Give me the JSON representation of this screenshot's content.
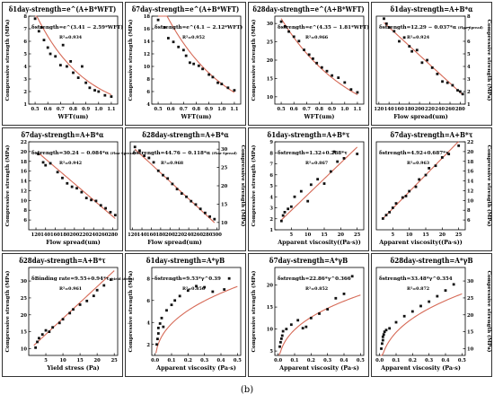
{
  "figure": {
    "caption": "(b)"
  },
  "colors": {
    "fit": "#d66a57",
    "point": "#111111",
    "axis": "#000000"
  },
  "chart_data": [
    {
      "type": "scatter",
      "title": "δ1day-strength=e^(A+B*WFT)",
      "equation": "δstrength=e^(3.41 − 2.59*WFT)",
      "r2": "R²=0.934",
      "xlabel": "WFT(um)",
      "ylabel": "Compressive strength (MPa)",
      "ylabel_side": "left",
      "xlim": [
        0.45,
        1.15
      ],
      "ylim": [
        1,
        8
      ],
      "xticks": [
        0.5,
        0.6,
        0.7,
        0.8,
        0.9,
        1.0,
        1.1
      ],
      "yticks": [
        1,
        2,
        3,
        4,
        5,
        6,
        7,
        8
      ],
      "fit": {
        "model": "exp",
        "a": 3.41,
        "b": -2.59,
        "x0": 0.5,
        "x1": 1.1
      },
      "points": [
        [
          0.5,
          7.8
        ],
        [
          0.53,
          6.8
        ],
        [
          0.55,
          7.1
        ],
        [
          0.57,
          6.1
        ],
        [
          0.6,
          5.5
        ],
        [
          0.62,
          5.0
        ],
        [
          0.66,
          4.8
        ],
        [
          0.7,
          4.1
        ],
        [
          0.72,
          5.7
        ],
        [
          0.75,
          4.0
        ],
        [
          0.78,
          4.4
        ],
        [
          0.8,
          3.5
        ],
        [
          0.84,
          3.1
        ],
        [
          0.87,
          4.0
        ],
        [
          0.9,
          2.7
        ],
        [
          0.93,
          2.3
        ],
        [
          0.97,
          2.1
        ],
        [
          1.0,
          2.0
        ],
        [
          1.05,
          1.7
        ],
        [
          1.1,
          1.6
        ]
      ]
    },
    {
      "type": "scatter",
      "title": "δ7day-strength=e^(A+B*WFT)",
      "equation": "δstrength=e^(4.1 − 2.12*WFT)",
      "r2": "R²=0.952",
      "xlabel": "WFT(um)",
      "ylabel": "Compressive strength (MPa)",
      "ylabel_side": "left",
      "xlim": [
        0.45,
        1.15
      ],
      "ylim": [
        4,
        18
      ],
      "xticks": [
        0.5,
        0.6,
        0.7,
        0.8,
        0.9,
        1.0,
        1.1
      ],
      "yticks": [
        4,
        6,
        8,
        10,
        12,
        14,
        16,
        18
      ],
      "fit": {
        "model": "exp",
        "a": 4.1,
        "b": -2.12,
        "x0": 0.5,
        "x1": 1.1
      },
      "points": [
        [
          0.5,
          17.4
        ],
        [
          0.55,
          16.2
        ],
        [
          0.58,
          14.5
        ],
        [
          0.62,
          13.9
        ],
        [
          0.66,
          13.1
        ],
        [
          0.7,
          12.6
        ],
        [
          0.72,
          11.7
        ],
        [
          0.75,
          10.6
        ],
        [
          0.78,
          10.4
        ],
        [
          0.82,
          10.1
        ],
        [
          0.85,
          9.6
        ],
        [
          0.9,
          8.7
        ],
        [
          0.93,
          8.3
        ],
        [
          0.97,
          7.4
        ],
        [
          1.0,
          7.2
        ],
        [
          1.05,
          6.6
        ],
        [
          1.1,
          6.2
        ]
      ]
    },
    {
      "type": "scatter",
      "title": "δ28day-strength=e^(A+B*WFT)",
      "equation": "δstrength=e^(4.35 − 1.81*WFT)",
      "r2": "R²=0.966",
      "xlabel": "WFT(um)",
      "ylabel": "Compressive strength (MPa)",
      "ylabel_side": "left",
      "xlim": [
        0.45,
        1.15
      ],
      "ylim": [
        8,
        32
      ],
      "xticks": [
        0.5,
        0.6,
        0.7,
        0.8,
        0.9,
        1.0,
        1.1
      ],
      "yticks": [
        10,
        15,
        20,
        25,
        30
      ],
      "fit": {
        "model": "exp",
        "a": 4.35,
        "b": -1.81,
        "x0": 0.5,
        "x1": 1.1
      },
      "points": [
        [
          0.5,
          30.5
        ],
        [
          0.53,
          29.2
        ],
        [
          0.56,
          27.8
        ],
        [
          0.6,
          26.4
        ],
        [
          0.64,
          25.2
        ],
        [
          0.68,
          22.8
        ],
        [
          0.72,
          21.5
        ],
        [
          0.75,
          20.4
        ],
        [
          0.78,
          19.2
        ],
        [
          0.82,
          18.0
        ],
        [
          0.86,
          17.0
        ],
        [
          0.9,
          15.8
        ],
        [
          0.95,
          15.2
        ],
        [
          1.0,
          13.9
        ],
        [
          1.05,
          12.0
        ],
        [
          1.1,
          11.2
        ]
      ]
    },
    {
      "type": "scatter",
      "title": "δ1day-strength=A+B*α",
      "equation": "δstrength=12.29 − 0.037*α",
      "equation_sub": "(Flow Spread)",
      "r2": "R²=0.924",
      "xlabel": "Flow spread(um)",
      "ylabel": "Compressive strength (MPa)",
      "ylabel_side": "right",
      "xlim": [
        115,
        290
      ],
      "ylim": [
        1,
        8
      ],
      "xticks": [
        120,
        140,
        160,
        180,
        200,
        220,
        240,
        260,
        280
      ],
      "yticks": [
        1,
        2,
        3,
        4,
        5,
        6,
        7,
        8
      ],
      "fit": {
        "model": "linear",
        "a": 12.29,
        "b": -0.037,
        "x0": 130,
        "x1": 285
      },
      "points": [
        [
          130,
          7.8
        ],
        [
          135,
          7.4
        ],
        [
          140,
          7.1
        ],
        [
          150,
          6.8
        ],
        [
          160,
          6.0
        ],
        [
          170,
          6.3
        ],
        [
          180,
          5.6
        ],
        [
          185,
          5.2
        ],
        [
          195,
          5.3
        ],
        [
          205,
          4.3
        ],
        [
          215,
          4.5
        ],
        [
          225,
          3.9
        ],
        [
          235,
          3.4
        ],
        [
          245,
          2.8
        ],
        [
          255,
          2.7
        ],
        [
          265,
          2.5
        ],
        [
          275,
          2.1
        ],
        [
          280,
          2.0
        ],
        [
          285,
          1.8
        ]
      ]
    },
    {
      "type": "scatter",
      "title": "δ7day-strength=A+B*α",
      "equation": "δstrength=30.24 − 0.084*α",
      "equation_sub": "(Flow Spread)",
      "r2": "R²=0.942",
      "xlabel": "Flow spread(um)",
      "ylabel": "Compressive strength (MPa)",
      "ylabel_side": "left",
      "xlim": [
        105,
        290
      ],
      "ylim": [
        4,
        22
      ],
      "xticks": [
        120,
        140,
        160,
        180,
        200,
        220,
        240,
        260,
        280
      ],
      "yticks": [
        6,
        8,
        10,
        12,
        14,
        16,
        18,
        20,
        22
      ],
      "fit": {
        "model": "linear",
        "a": 30.24,
        "b": -0.084,
        "x0": 125,
        "x1": 285
      },
      "points": [
        [
          125,
          19.5
        ],
        [
          135,
          17.8
        ],
        [
          140,
          17.2
        ],
        [
          150,
          17.6
        ],
        [
          165,
          15.8
        ],
        [
          175,
          14.6
        ],
        [
          185,
          13.5
        ],
        [
          195,
          12.8
        ],
        [
          205,
          12.5
        ],
        [
          215,
          11.7
        ],
        [
          225,
          10.5
        ],
        [
          235,
          10.1
        ],
        [
          245,
          9.9
        ],
        [
          255,
          9.0
        ],
        [
          265,
          8.4
        ],
        [
          275,
          7.6
        ],
        [
          285,
          7.0
        ]
      ]
    },
    {
      "type": "scatter",
      "title": "δ28day-strength=A+B*α",
      "equation": "δstrength=44.76 − 0.118*α",
      "equation_sub": "(Flow Spread)",
      "r2": "R²=0.968",
      "xlabel": "Flow spread(um)",
      "ylabel": "Compressive strength (MPa)",
      "ylabel_side": "right",
      "xlim": [
        115,
        305
      ],
      "ylim": [
        8,
        32
      ],
      "xticks": [
        120,
        140,
        160,
        180,
        200,
        220,
        240,
        260,
        280,
        300
      ],
      "yticks": [
        10,
        15,
        20,
        25,
        30
      ],
      "fit": {
        "model": "linear",
        "a": 44.76,
        "b": -0.118,
        "x0": 125,
        "x1": 295
      },
      "points": [
        [
          125,
          30.6
        ],
        [
          135,
          29.6
        ],
        [
          145,
          28.2
        ],
        [
          155,
          27.6
        ],
        [
          165,
          26.4
        ],
        [
          175,
          24.1
        ],
        [
          185,
          22.9
        ],
        [
          195,
          22.0
        ],
        [
          205,
          20.5
        ],
        [
          215,
          19.1
        ],
        [
          225,
          17.9
        ],
        [
          235,
          17.0
        ],
        [
          245,
          15.8
        ],
        [
          255,
          14.9
        ],
        [
          265,
          13.7
        ],
        [
          275,
          12.6
        ],
        [
          285,
          11.6
        ],
        [
          295,
          10.9
        ]
      ]
    },
    {
      "type": "scatter",
      "title": "δ1day-strength=A+B*τ",
      "equation": "δstrength=1.32+0.288*τ",
      "r2": "R²=0.867",
      "xlabel": "Apparent viscosity((Pa·s))",
      "ylabel": "Compressive strength (MPa)",
      "ylabel_side": "left",
      "xlim": [
        0,
        27
      ],
      "ylim": [
        1,
        9
      ],
      "xticks": [
        5,
        10,
        15,
        20,
        25
      ],
      "yticks": [
        1,
        2,
        3,
        4,
        5,
        6,
        7,
        8,
        9
      ],
      "fit": {
        "model": "linear",
        "a": 1.32,
        "b": 0.288,
        "x0": 2,
        "x1": 25
      },
      "points": [
        [
          2,
          1.8
        ],
        [
          2.5,
          2.3
        ],
        [
          3,
          2.6
        ],
        [
          4,
          2.9
        ],
        [
          5,
          3.1
        ],
        [
          6,
          4.0
        ],
        [
          8,
          4.5
        ],
        [
          10,
          3.6
        ],
        [
          11,
          5.1
        ],
        [
          13,
          5.6
        ],
        [
          15,
          5.2
        ],
        [
          17,
          6.3
        ],
        [
          18,
          8.1
        ],
        [
          19,
          7.2
        ],
        [
          21,
          7.5
        ],
        [
          25,
          7.9
        ]
      ]
    },
    {
      "type": "scatter",
      "title": "δ7day-strength=A+B*τ",
      "equation": "δstrength=4.92+0.687*τ",
      "r2": "R²=0.963",
      "xlabel": "Apparent viscosity((Pa·s))",
      "ylabel": "Compressive strength (MPa)",
      "ylabel_side": "right",
      "xlim": [
        0,
        27
      ],
      "ylim": [
        4,
        22
      ],
      "xticks": [
        5,
        10,
        15,
        20,
        25
      ],
      "yticks": [
        6,
        8,
        10,
        12,
        14,
        16,
        18,
        20,
        22
      ],
      "fit": {
        "model": "linear",
        "a": 4.92,
        "b": 0.687,
        "x0": 2,
        "x1": 25
      },
      "points": [
        [
          2,
          6.3
        ],
        [
          3,
          7.0
        ],
        [
          4,
          7.6
        ],
        [
          5,
          8.5
        ],
        [
          6,
          9.4
        ],
        [
          8,
          10.6
        ],
        [
          9,
          10.9
        ],
        [
          10,
          11.9
        ],
        [
          12,
          12.8
        ],
        [
          13,
          14.3
        ],
        [
          15,
          15.2
        ],
        [
          16,
          16.6
        ],
        [
          18,
          17.1
        ],
        [
          20,
          18.8
        ],
        [
          22,
          19.5
        ],
        [
          25,
          21.2
        ]
      ]
    },
    {
      "type": "scatter",
      "title": "δ28day-strength=A+B*τ",
      "equation": "δBinding rate=9.55+0.94*τ",
      "equation_sub": "(yield stress)",
      "r2": "R²=0.961",
      "xlabel": "Yield stress (Pa)",
      "ylabel": "Compressive strength (MPa)",
      "ylabel_side": "left",
      "xlim": [
        0,
        26
      ],
      "ylim": [
        8,
        34
      ],
      "xticks": [
        5,
        10,
        15,
        20,
        25
      ],
      "yticks": [
        10,
        15,
        20,
        25,
        30
      ],
      "fit": {
        "model": "linear",
        "a": 9.55,
        "b": 0.94,
        "x0": 1.5,
        "x1": 25
      },
      "points": [
        [
          2,
          10.3
        ],
        [
          2.5,
          12.0
        ],
        [
          3,
          13.1
        ],
        [
          4,
          14.2
        ],
        [
          5,
          15.4
        ],
        [
          6,
          15.0
        ],
        [
          7,
          16.3
        ],
        [
          9,
          17.6
        ],
        [
          10,
          18.7
        ],
        [
          12,
          20.5
        ],
        [
          13,
          21.6
        ],
        [
          15,
          23.0
        ],
        [
          17,
          24.1
        ],
        [
          19,
          25.6
        ],
        [
          20,
          27.3
        ],
        [
          22,
          28.7
        ],
        [
          24,
          30.4
        ]
      ]
    },
    {
      "type": "scatter",
      "title": "δ1day-strength=A*γB",
      "equation": "δstrength=9.53*γ^0.39",
      "r2": "R²=0.856",
      "xlabel": "Apparent viscosity (Pa·s)",
      "ylabel": "Compressive strength (MPa)",
      "ylabel_side": "left",
      "xlim": [
        -0.02,
        0.52
      ],
      "ylim": [
        1,
        9
      ],
      "xticks": [
        0.0,
        0.1,
        0.2,
        0.3,
        0.4,
        0.5
      ],
      "yticks": [
        2,
        4,
        6,
        8
      ],
      "fit": {
        "model": "power",
        "a": 9.53,
        "b": 0.39,
        "x0": 0.005,
        "x1": 0.5
      },
      "points": [
        [
          0.01,
          2.0
        ],
        [
          0.015,
          2.5
        ],
        [
          0.02,
          3.0
        ],
        [
          0.02,
          3.5
        ],
        [
          0.03,
          3.9
        ],
        [
          0.04,
          4.4
        ],
        [
          0.05,
          3.6
        ],
        [
          0.07,
          5.1
        ],
        [
          0.1,
          5.6
        ],
        [
          0.12,
          6.0
        ],
        [
          0.15,
          6.4
        ],
        [
          0.2,
          6.9
        ],
        [
          0.25,
          7.3
        ],
        [
          0.3,
          7.2
        ],
        [
          0.35,
          6.8
        ],
        [
          0.42,
          7.0
        ],
        [
          0.45,
          8.0
        ]
      ]
    },
    {
      "type": "scatter",
      "title": "δ7day-strength=A*γB",
      "equation": "δstrength=22.86*γ^0.366",
      "r2": "R²=0.852",
      "xlabel": "Apparent viscosity (Pa·s)",
      "ylabel": "Compressive strength (MPa)",
      "ylabel_side": "left",
      "xlim": [
        -0.02,
        0.52
      ],
      "ylim": [
        4,
        24
      ],
      "xticks": [
        0.0,
        0.1,
        0.2,
        0.3,
        0.4,
        0.5
      ],
      "yticks": [
        5,
        10,
        15,
        20
      ],
      "fit": {
        "model": "power",
        "a": 22.86,
        "b": 0.366,
        "x0": 0.005,
        "x1": 0.5
      },
      "points": [
        [
          0.01,
          6.0
        ],
        [
          0.015,
          7.0
        ],
        [
          0.02,
          7.8
        ],
        [
          0.025,
          8.5
        ],
        [
          0.03,
          9.5
        ],
        [
          0.05,
          10.0
        ],
        [
          0.08,
          11.0
        ],
        [
          0.12,
          12.0
        ],
        [
          0.15,
          10.2
        ],
        [
          0.17,
          10.5
        ],
        [
          0.2,
          12.5
        ],
        [
          0.25,
          13.5
        ],
        [
          0.3,
          14.5
        ],
        [
          0.35,
          17.0
        ],
        [
          0.4,
          18.0
        ],
        [
          0.45,
          22.0
        ]
      ]
    },
    {
      "type": "scatter",
      "title": "δ28day-strength=A*γB",
      "equation": "δstrength=33.48*γ^0.354",
      "r2": "R²=0.872",
      "xlabel": "Apparent viscosity (Pa·s)",
      "ylabel": "Compressive strength (MPa)",
      "ylabel_side": "right",
      "xlim": [
        -0.02,
        0.52
      ],
      "ylim": [
        8,
        34
      ],
      "xticks": [
        0.0,
        0.1,
        0.2,
        0.3,
        0.4,
        0.5
      ],
      "yticks": [
        10,
        15,
        20,
        25,
        30
      ],
      "fit": {
        "model": "power",
        "a": 33.48,
        "b": 0.354,
        "x0": 0.005,
        "x1": 0.5
      },
      "points": [
        [
          0.01,
          10.0
        ],
        [
          0.015,
          11.5
        ],
        [
          0.02,
          12.5
        ],
        [
          0.02,
          13.5
        ],
        [
          0.025,
          14.2
        ],
        [
          0.03,
          15.0
        ],
        [
          0.04,
          15.5
        ],
        [
          0.06,
          16.0
        ],
        [
          0.1,
          17.8
        ],
        [
          0.15,
          19.6
        ],
        [
          0.2,
          21.0
        ],
        [
          0.25,
          22.6
        ],
        [
          0.3,
          23.9
        ],
        [
          0.35,
          25.5
        ],
        [
          0.4,
          27.2
        ],
        [
          0.45,
          29.0
        ]
      ]
    }
  ]
}
